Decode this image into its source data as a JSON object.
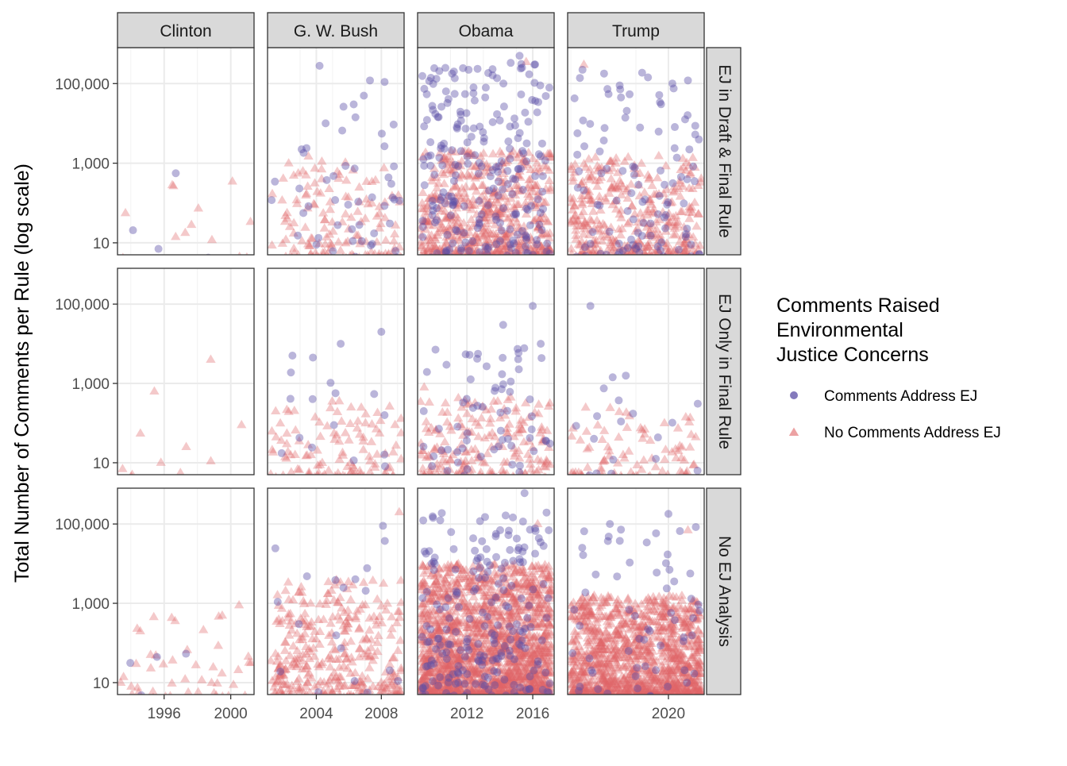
{
  "chart_data": {
    "type": "scatter",
    "title": "",
    "xlabel": "",
    "ylabel": "Total Number of Comments per Rule (log scale)",
    "yscale": "log10",
    "ylim": [
      5,
      800000
    ],
    "y_ticks": [
      10,
      1000,
      100000
    ],
    "y_tick_labels": [
      "10",
      "1,000",
      "100,000"
    ],
    "facet_columns": [
      {
        "label": "Clinton",
        "xlim": [
          1993.2,
          2001.4
        ],
        "x_ticks": [
          1996,
          2000
        ],
        "x_tick_labels": [
          "1996",
          "2000"
        ]
      },
      {
        "label": "G. W. Bush",
        "xlim": [
          2001,
          2009.4
        ],
        "x_ticks": [
          2004,
          2008
        ],
        "x_tick_labels": [
          "2004",
          "2008"
        ]
      },
      {
        "label": "Obama",
        "xlim": [
          2009,
          2017.3
        ],
        "x_ticks": [
          2012,
          2016
        ],
        "x_tick_labels": [
          "2012",
          "2016"
        ]
      },
      {
        "label": "Trump",
        "xlim": [
          2016.9,
          2021.1
        ],
        "x_ticks": [
          2020
        ],
        "x_tick_labels": [
          "2020"
        ]
      }
    ],
    "facet_rows": [
      {
        "label": "EJ in Draft & Final Rule"
      },
      {
        "label": "EJ Only in Final Rule"
      },
      {
        "label": "No EJ Analysis"
      }
    ],
    "legend": {
      "title": [
        "Comments Raised",
        "Environmental",
        "Justice Concerns"
      ],
      "position": "right",
      "entries": [
        {
          "label": "Comments Address EJ",
          "shape": "circle",
          "color": "#5b4ea6"
        },
        {
          "label": "No Comments Address EJ",
          "shape": "triangle",
          "color": "#e06466"
        }
      ]
    },
    "series": [
      {
        "name": "Comments Address EJ",
        "shape": "circle",
        "color": "#5b4ea6",
        "opacity": 0.42,
        "points": [
          {
            "row": 0,
            "col": 0,
            "x": 1996.7,
            "y": 560
          },
          {
            "row": 0,
            "col": 1,
            "x": 2004.2,
            "y": 280000
          },
          {
            "row": 0,
            "col": 1,
            "x": 2007.3,
            "y": 120000
          },
          {
            "row": 0,
            "col": 1,
            "x": 2008.2,
            "y": 110000
          },
          {
            "row": 0,
            "col": 1,
            "x": 2006.3,
            "y": 30000
          },
          {
            "row": 0,
            "col": 2,
            "x": 2015.2,
            "y": 500000
          },
          {
            "row": 0,
            "col": 2,
            "x": 2012.4,
            "y": 80000
          },
          {
            "row": 0,
            "col": 2,
            "x": 2016.1,
            "y": 300000
          },
          {
            "row": 0,
            "col": 3,
            "x": 2020.6,
            "y": 120000
          },
          {
            "row": 0,
            "col": 3,
            "x": 2018.5,
            "y": 90000
          },
          {
            "row": 1,
            "col": 1,
            "x": 2008,
            "y": 20000
          },
          {
            "row": 1,
            "col": 1,
            "x": 2005.5,
            "y": 10000
          },
          {
            "row": 1,
            "col": 2,
            "x": 2016.0,
            "y": 90000
          },
          {
            "row": 1,
            "col": 2,
            "x": 2014.2,
            "y": 30000
          },
          {
            "row": 1,
            "col": 3,
            "x": 2017.6,
            "y": 90000
          },
          {
            "row": 2,
            "col": 1,
            "x": 2008.1,
            "y": 90000
          },
          {
            "row": 2,
            "col": 2,
            "x": 2015.5,
            "y": 600000
          },
          {
            "row": 2,
            "col": 2,
            "x": 2013.1,
            "y": 150000
          },
          {
            "row": 2,
            "col": 3,
            "x": 2020.0,
            "y": 180000
          },
          {
            "row": 2,
            "col": 3,
            "x": 2018.2,
            "y": 100000
          }
        ]
      },
      {
        "name": "No Comments Address EJ",
        "shape": "triangle",
        "color": "#e06466",
        "opacity": 0.35,
        "points": [
          {
            "row": 0,
            "col": 0,
            "x": 2000.1,
            "y": 350
          },
          {
            "row": 0,
            "col": 1,
            "x": 2002.3,
            "y": 1000
          },
          {
            "row": 0,
            "col": 2,
            "x": 2015.6,
            "y": 350000
          },
          {
            "row": 0,
            "col": 3,
            "x": 2017.4,
            "y": 300000
          },
          {
            "row": 1,
            "col": 0,
            "x": 1998.8,
            "y": 4000
          },
          {
            "row": 1,
            "col": 1,
            "x": 2001.5,
            "y": 200
          },
          {
            "row": 1,
            "col": 2,
            "x": 2009.4,
            "y": 800
          },
          {
            "row": 1,
            "col": 3,
            "x": 2018.8,
            "y": 150
          },
          {
            "row": 2,
            "col": 0,
            "x": 1993.4,
            "y": 10
          },
          {
            "row": 2,
            "col": 0,
            "x": 2000.5,
            "y": 900
          },
          {
            "row": 2,
            "col": 1,
            "x": 2009.1,
            "y": 200000
          },
          {
            "row": 2,
            "col": 2,
            "x": 2016.3,
            "y": 100000
          },
          {
            "row": 2,
            "col": 3,
            "x": 2020.6,
            "y": 70000
          }
        ]
      }
    ]
  }
}
